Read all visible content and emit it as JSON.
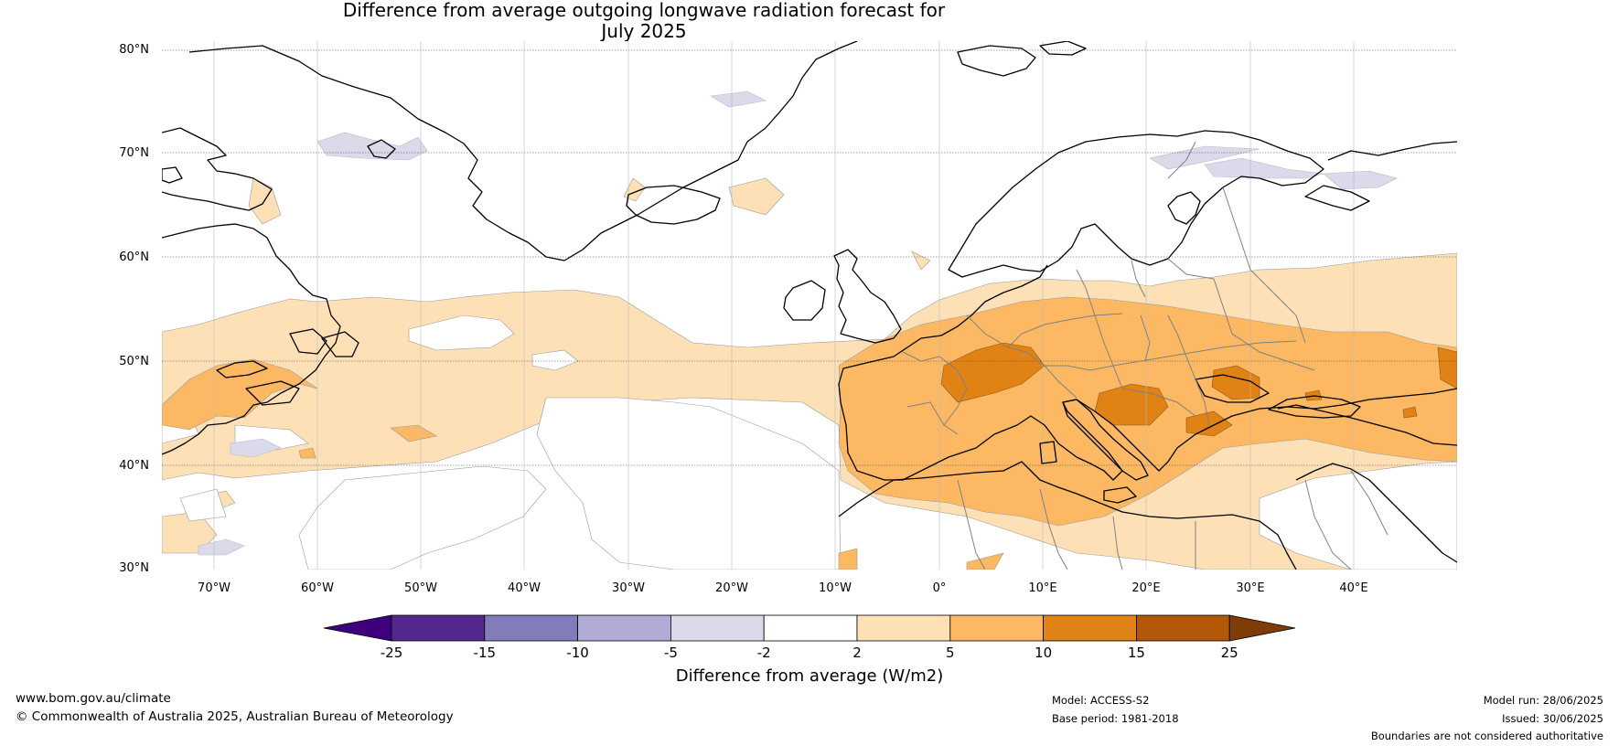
{
  "title": {
    "line1": "Difference from average outgoing longwave radiation forecast for",
    "line2": "July 2025"
  },
  "map": {
    "lat_labels": [
      "80°N",
      "70°N",
      "60°N",
      "50°N",
      "40°N",
      "30°N"
    ],
    "lon_labels": [
      "70°W",
      "60°W",
      "50°W",
      "40°W",
      "30°W",
      "20°W",
      "10°W",
      "0°",
      "10°E",
      "20°E",
      "30°E",
      "40°E"
    ],
    "extent": {
      "lon": [
        -75,
        50
      ],
      "lat": [
        30,
        81
      ]
    },
    "land_outline_color": "#000000",
    "border_color": "#808080"
  },
  "colorbar": {
    "label": "Difference from average (W/m2)",
    "ticks": [
      "-25",
      "-15",
      "-10",
      "-5",
      "-2",
      "2",
      "5",
      "10",
      "15",
      "25"
    ],
    "colors": [
      "#3f007d",
      "#54278f",
      "#807dba",
      "#b1acd6",
      "#dadaeb",
      "#ffffff",
      "#fde0b6",
      "#fdb863",
      "#e08214",
      "#b35806",
      "#7f3b08"
    ]
  },
  "footer": {
    "website": "www.bom.gov.au/climate",
    "copyright": "© Commonwealth of Australia 2025, Australian Bureau of Meteorology",
    "model": "Model: ACCESS-S2",
    "base_period": "Base period: 1981-2018",
    "model_run": "Model run: 28/06/2025",
    "issued": "Issued: 30/06/2025",
    "disclaimer": "Boundaries are not considered authoritative"
  }
}
